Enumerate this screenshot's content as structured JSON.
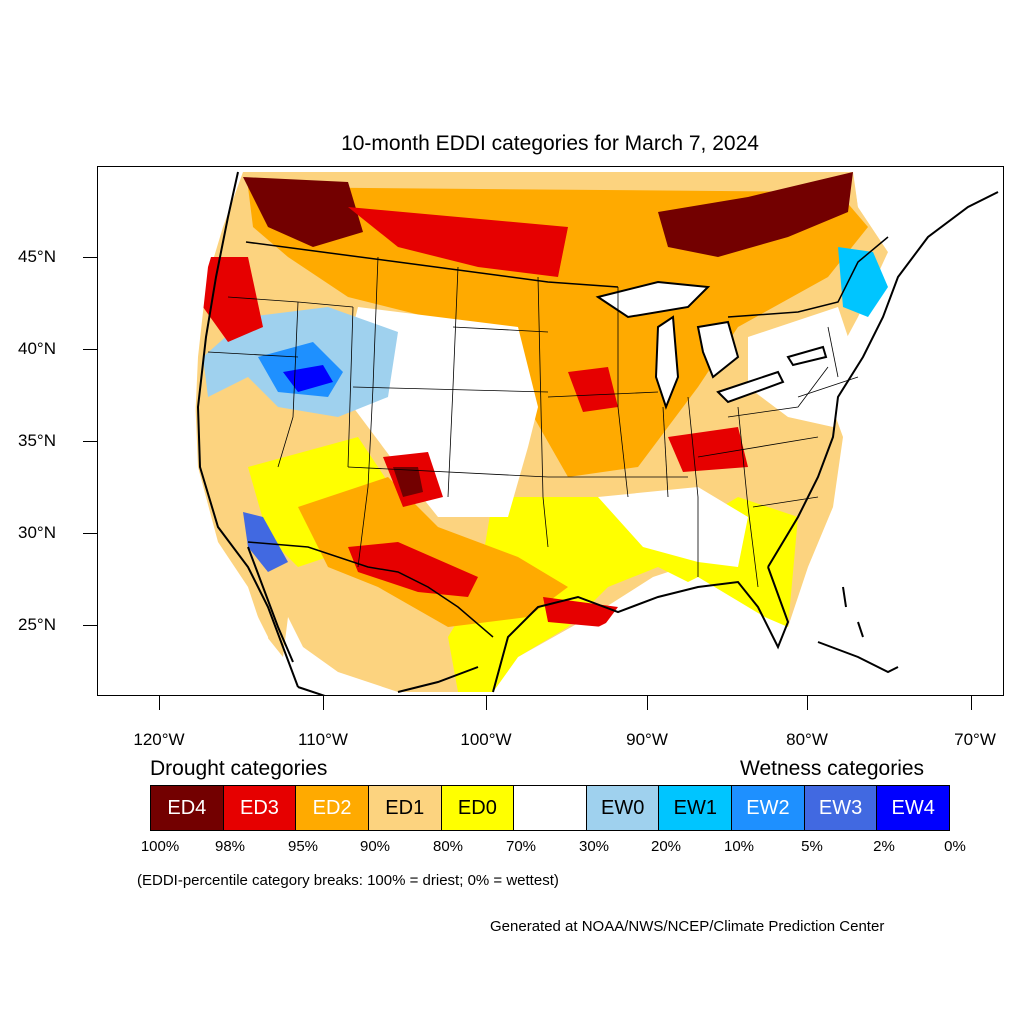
{
  "title": "10-month EDDI categories for March 7, 2024",
  "lat_labels": [
    "45°N",
    "40°N",
    "35°N",
    "30°N",
    "25°N"
  ],
  "lon_labels": [
    "120°W",
    "110°W",
    "100°W",
    "90°W",
    "80°W",
    "70°W"
  ],
  "legend": {
    "drought_heading": "Drought categories",
    "wetness_heading": "Wetness categories",
    "categories": [
      {
        "label": "ED4",
        "color": "#730000",
        "text_color": "#ffffff"
      },
      {
        "label": "ED3",
        "color": "#e60000",
        "text_color": "#ffffff"
      },
      {
        "label": "ED2",
        "color": "#ffaa00",
        "text_color": "#ffffff"
      },
      {
        "label": "ED1",
        "color": "#fcd37f",
        "text_color": "#000000"
      },
      {
        "label": "ED0",
        "color": "#ffff00",
        "text_color": "#000000"
      },
      {
        "label": "",
        "color": "#ffffff",
        "text_color": "#000000"
      },
      {
        "label": "EW0",
        "color": "#9fd1ee",
        "text_color": "#000000"
      },
      {
        "label": "EW1",
        "color": "#00c5ff",
        "text_color": "#000000"
      },
      {
        "label": "EW2",
        "color": "#1e90ff",
        "text_color": "#ffffff"
      },
      {
        "label": "EW3",
        "color": "#4169e1",
        "text_color": "#ffffff"
      },
      {
        "label": "EW4",
        "color": "#0000ff",
        "text_color": "#ffffff"
      }
    ],
    "breaks": [
      "100%",
      "98%",
      "95%",
      "90%",
      "80%",
      "70%",
      "30%",
      "20%",
      "10%",
      "5%",
      "2%",
      "0%"
    ]
  },
  "note": "(EDDI-percentile category breaks: 100% = driest; 0% = wettest)",
  "credit": "Generated at NOAA/NWS/NCEP/Climate Prediction Center"
}
